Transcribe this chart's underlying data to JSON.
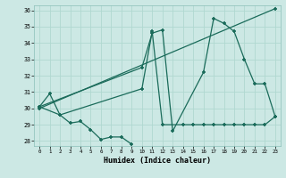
{
  "xlabel": "Humidex (Indice chaleur)",
  "bg_color": "#cce8e4",
  "grid_color": "#b0d8d0",
  "line_color": "#1a6b5a",
  "xlim": [
    -0.5,
    23.5
  ],
  "ylim": [
    27.7,
    36.3
  ],
  "xticks": [
    0,
    1,
    2,
    3,
    4,
    5,
    6,
    7,
    8,
    9,
    10,
    11,
    12,
    13,
    14,
    15,
    16,
    17,
    18,
    19,
    20,
    21,
    22,
    23
  ],
  "yticks": [
    28,
    29,
    30,
    31,
    32,
    33,
    34,
    35,
    36
  ],
  "l1x": [
    0,
    1,
    2,
    3,
    4,
    5,
    6,
    7,
    8,
    9
  ],
  "l1y": [
    30.1,
    30.9,
    29.6,
    29.1,
    29.2,
    28.7,
    28.1,
    28.25,
    28.25,
    27.8
  ],
  "l2x": [
    0,
    10,
    11,
    12,
    13,
    16,
    17,
    18,
    19,
    20,
    21,
    22,
    23
  ],
  "l2y": [
    30.1,
    32.5,
    34.6,
    34.8,
    28.6,
    32.2,
    35.5,
    35.2,
    34.7,
    33.0,
    31.5,
    31.5,
    29.5
  ],
  "l3x": [
    0,
    2,
    10,
    11,
    12,
    14,
    15,
    16,
    17,
    18,
    19,
    20,
    21,
    22,
    23
  ],
  "l3y": [
    30.1,
    29.6,
    31.2,
    34.7,
    29.0,
    29.0,
    29.0,
    29.0,
    29.0,
    29.0,
    29.0,
    29.0,
    29.0,
    29.0,
    29.5
  ],
  "l4x": [
    0,
    23
  ],
  "l4y": [
    30.0,
    36.1
  ]
}
